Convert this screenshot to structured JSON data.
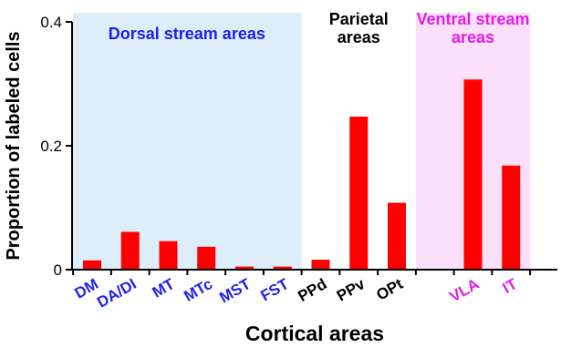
{
  "chart_data": {
    "type": "bar",
    "xlabel": "Cortical areas",
    "ylabel": "Proportion of labeled cells",
    "ylim": [
      0,
      0.4
    ],
    "yticks": [
      "0",
      "0.2",
      "0.4"
    ],
    "grid": false,
    "bar_color": "#ff0000",
    "categories": [
      {
        "label": "DM",
        "value": 0.015,
        "color": "#1f1fe8"
      },
      {
        "label": "DA/DI",
        "value": 0.061,
        "color": "#1f1fe8"
      },
      {
        "label": "MT",
        "value": 0.046,
        "color": "#1f1fe8"
      },
      {
        "label": "MTc",
        "value": 0.037,
        "color": "#1f1fe8"
      },
      {
        "label": "MST",
        "value": 0.005,
        "color": "#1f1fe8"
      },
      {
        "label": "FST",
        "value": 0.005,
        "color": "#1f1fe8"
      },
      {
        "label": "PPd",
        "value": 0.016,
        "color": "#000000"
      },
      {
        "label": "PPv",
        "value": 0.247,
        "color": "#000000"
      },
      {
        "label": "OPt",
        "value": 0.108,
        "color": "#000000"
      },
      {
        "label": "",
        "value": 0,
        "color": "#000000"
      },
      {
        "label": "VLA",
        "value": 0.307,
        "color": "#e21ee6"
      },
      {
        "label": "IT",
        "value": 0.168,
        "color": "#e21ee6"
      }
    ],
    "regions": [
      {
        "label_lines": [
          "Dorsal stream areas"
        ],
        "color": "#1f1fe8",
        "background": "#ddeefa",
        "first_slot": 0,
        "last_slot": 5
      },
      {
        "label_lines": [
          "Parietal",
          "areas"
        ],
        "color": "#000000",
        "background": "",
        "first_slot": 6,
        "last_slot": 8
      },
      {
        "label_lines": [
          "Ventral stream",
          "areas"
        ],
        "color": "#e21ee6",
        "background": "#fbe0fb",
        "first_slot": 9,
        "last_slot": 11
      }
    ]
  }
}
